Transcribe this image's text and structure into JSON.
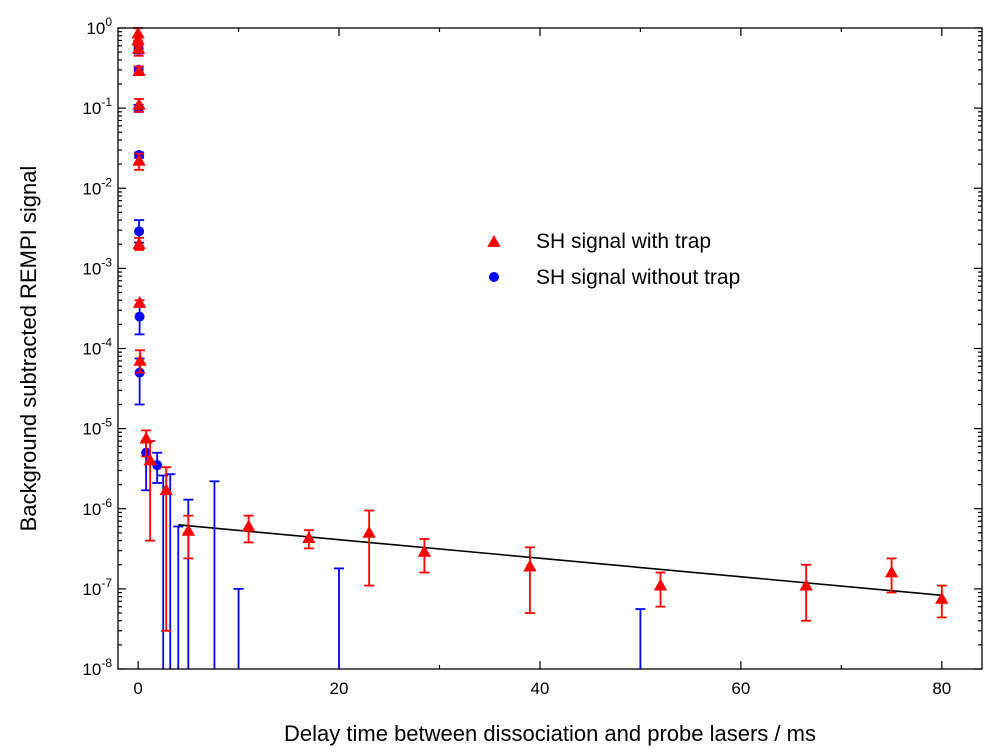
{
  "chart_data": {
    "type": "scatter",
    "xlabel": "Delay time between dissociation and probe lasers / ms",
    "ylabel": "Background subtracted REMPI signal",
    "xlim": [
      -2,
      84
    ],
    "ylim": [
      1e-08,
      1
    ],
    "y_scale": "log",
    "x_ticks": [
      0,
      20,
      40,
      60,
      80
    ],
    "x_tick_labels": [
      "0",
      "20",
      "40",
      "60",
      "80"
    ],
    "y_ticks": [
      {
        "value": 1e-08,
        "base": "10",
        "exp": "-8"
      },
      {
        "value": 1e-07,
        "base": "10",
        "exp": "-7"
      },
      {
        "value": 1e-06,
        "base": "10",
        "exp": "-6"
      },
      {
        "value": 1e-05,
        "base": "10",
        "exp": "-5"
      },
      {
        "value": 0.0001,
        "base": "10",
        "exp": "-4"
      },
      {
        "value": 0.001,
        "base": "10",
        "exp": "-3"
      },
      {
        "value": 0.01,
        "base": "10",
        "exp": "-2"
      },
      {
        "value": 0.1,
        "base": "10",
        "exp": "-1"
      },
      {
        "value": 1,
        "base": "10",
        "exp": "0"
      }
    ],
    "legend_position": "center-right",
    "series": [
      {
        "name": "SH signal with trap",
        "marker": "triangle",
        "color": "#ff0000",
        "points": [
          {
            "x": 0.0,
            "y": 0.85,
            "lo": 0.7,
            "hi": 1.0
          },
          {
            "x": 0.0,
            "y": 0.7,
            "lo": 0.6,
            "hi": 0.8
          },
          {
            "x": 0.05,
            "y": 0.55,
            "lo": 0.45,
            "hi": 0.65
          },
          {
            "x": 0.1,
            "y": 0.29,
            "lo": 0.26,
            "hi": 0.33
          },
          {
            "x": 0.1,
            "y": 0.11,
            "lo": 0.09,
            "hi": 0.13
          },
          {
            "x": 0.1,
            "y": 0.022,
            "lo": 0.017,
            "hi": 0.027
          },
          {
            "x": 0.1,
            "y": 0.002,
            "lo": 0.0017,
            "hi": 0.0024
          },
          {
            "x": 0.15,
            "y": 0.00037,
            "lo": 0.00035,
            "hi": 0.0004
          },
          {
            "x": 0.2,
            "y": 7e-05,
            "lo": 5e-05,
            "hi": 9.5e-05
          },
          {
            "x": 0.8,
            "y": 7.5e-06,
            "lo": 4.5e-06,
            "hi": 9.5e-06
          },
          {
            "x": 1.2,
            "y": 4e-06,
            "lo": 4e-07,
            "hi": 7e-06
          },
          {
            "x": 2.8,
            "y": 1.7e-06,
            "lo": 3e-08,
            "hi": 3.3e-06
          },
          {
            "x": 5.0,
            "y": 5.3e-07,
            "lo": 2.4e-07,
            "hi": 8.2e-07
          },
          {
            "x": 11.0,
            "y": 6e-07,
            "lo": 3.8e-07,
            "hi": 8.2e-07
          },
          {
            "x": 17.0,
            "y": 4.3e-07,
            "lo": 3.2e-07,
            "hi": 5.4e-07
          },
          {
            "x": 23.0,
            "y": 5e-07,
            "lo": 1.1e-07,
            "hi": 9.5e-07
          },
          {
            "x": 28.5,
            "y": 2.9e-07,
            "lo": 1.6e-07,
            "hi": 4.2e-07
          },
          {
            "x": 39.0,
            "y": 1.9e-07,
            "lo": 5e-08,
            "hi": 3.3e-07
          },
          {
            "x": 52.0,
            "y": 1.1e-07,
            "lo": 6e-08,
            "hi": 1.6e-07
          },
          {
            "x": 66.5,
            "y": 1.1e-07,
            "lo": 4e-08,
            "hi": 2e-07
          },
          {
            "x": 75.0,
            "y": 1.6e-07,
            "lo": 9e-08,
            "hi": 2.4e-07
          },
          {
            "x": 80.0,
            "y": 7.5e-08,
            "lo": 4.4e-08,
            "hi": 1.1e-07
          }
        ]
      },
      {
        "name": "SH signal without trap",
        "marker": "circle",
        "color": "#0000ff",
        "points": [
          {
            "x": 0.05,
            "y": 0.55,
            "lo": 0.48,
            "hi": 0.62
          },
          {
            "x": 0.05,
            "y": 0.3,
            "lo": 0.27,
            "hi": 0.33
          },
          {
            "x": 0.05,
            "y": 0.1,
            "lo": 0.09,
            "hi": 0.11
          },
          {
            "x": 0.1,
            "y": 0.026,
            "lo": 0.024,
            "hi": 0.028
          },
          {
            "x": 0.1,
            "y": 0.0029,
            "lo": 0.0021,
            "hi": 0.004
          },
          {
            "x": 0.15,
            "y": 0.00025,
            "lo": 0.00015,
            "hi": 0.00035
          },
          {
            "x": 0.15,
            "y": 5e-05,
            "lo": 2e-05,
            "hi": 7.5e-05
          },
          {
            "x": 0.8,
            "y": 5e-06,
            "lo": 1.7e-06,
            "hi": 7e-06
          },
          {
            "x": 1.9,
            "y": 3.5e-06,
            "lo": 2.1e-06,
            "hi": 5e-06
          },
          {
            "x": 2.5,
            "y": null,
            "lo": null,
            "hi": 2.6e-06
          },
          {
            "x": 3.2,
            "y": null,
            "lo": null,
            "hi": 2.7e-06
          },
          {
            "x": 4.0,
            "y": null,
            "lo": null,
            "hi": 6e-07
          },
          {
            "x": 5.0,
            "y": null,
            "lo": null,
            "hi": 1.3e-06
          },
          {
            "x": 7.6,
            "y": null,
            "lo": null,
            "hi": 2.2e-06
          },
          {
            "x": 10.0,
            "y": null,
            "lo": null,
            "hi": 1e-07
          },
          {
            "x": 20.0,
            "y": null,
            "lo": null,
            "hi": 1.8e-07
          },
          {
            "x": 50.0,
            "y": null,
            "lo": null,
            "hi": 5.6e-08
          }
        ]
      }
    ],
    "fit_line": {
      "color": "#000000",
      "x": [
        4,
        80
      ],
      "y": [
        6.3e-07,
        8.3e-08
      ]
    }
  }
}
